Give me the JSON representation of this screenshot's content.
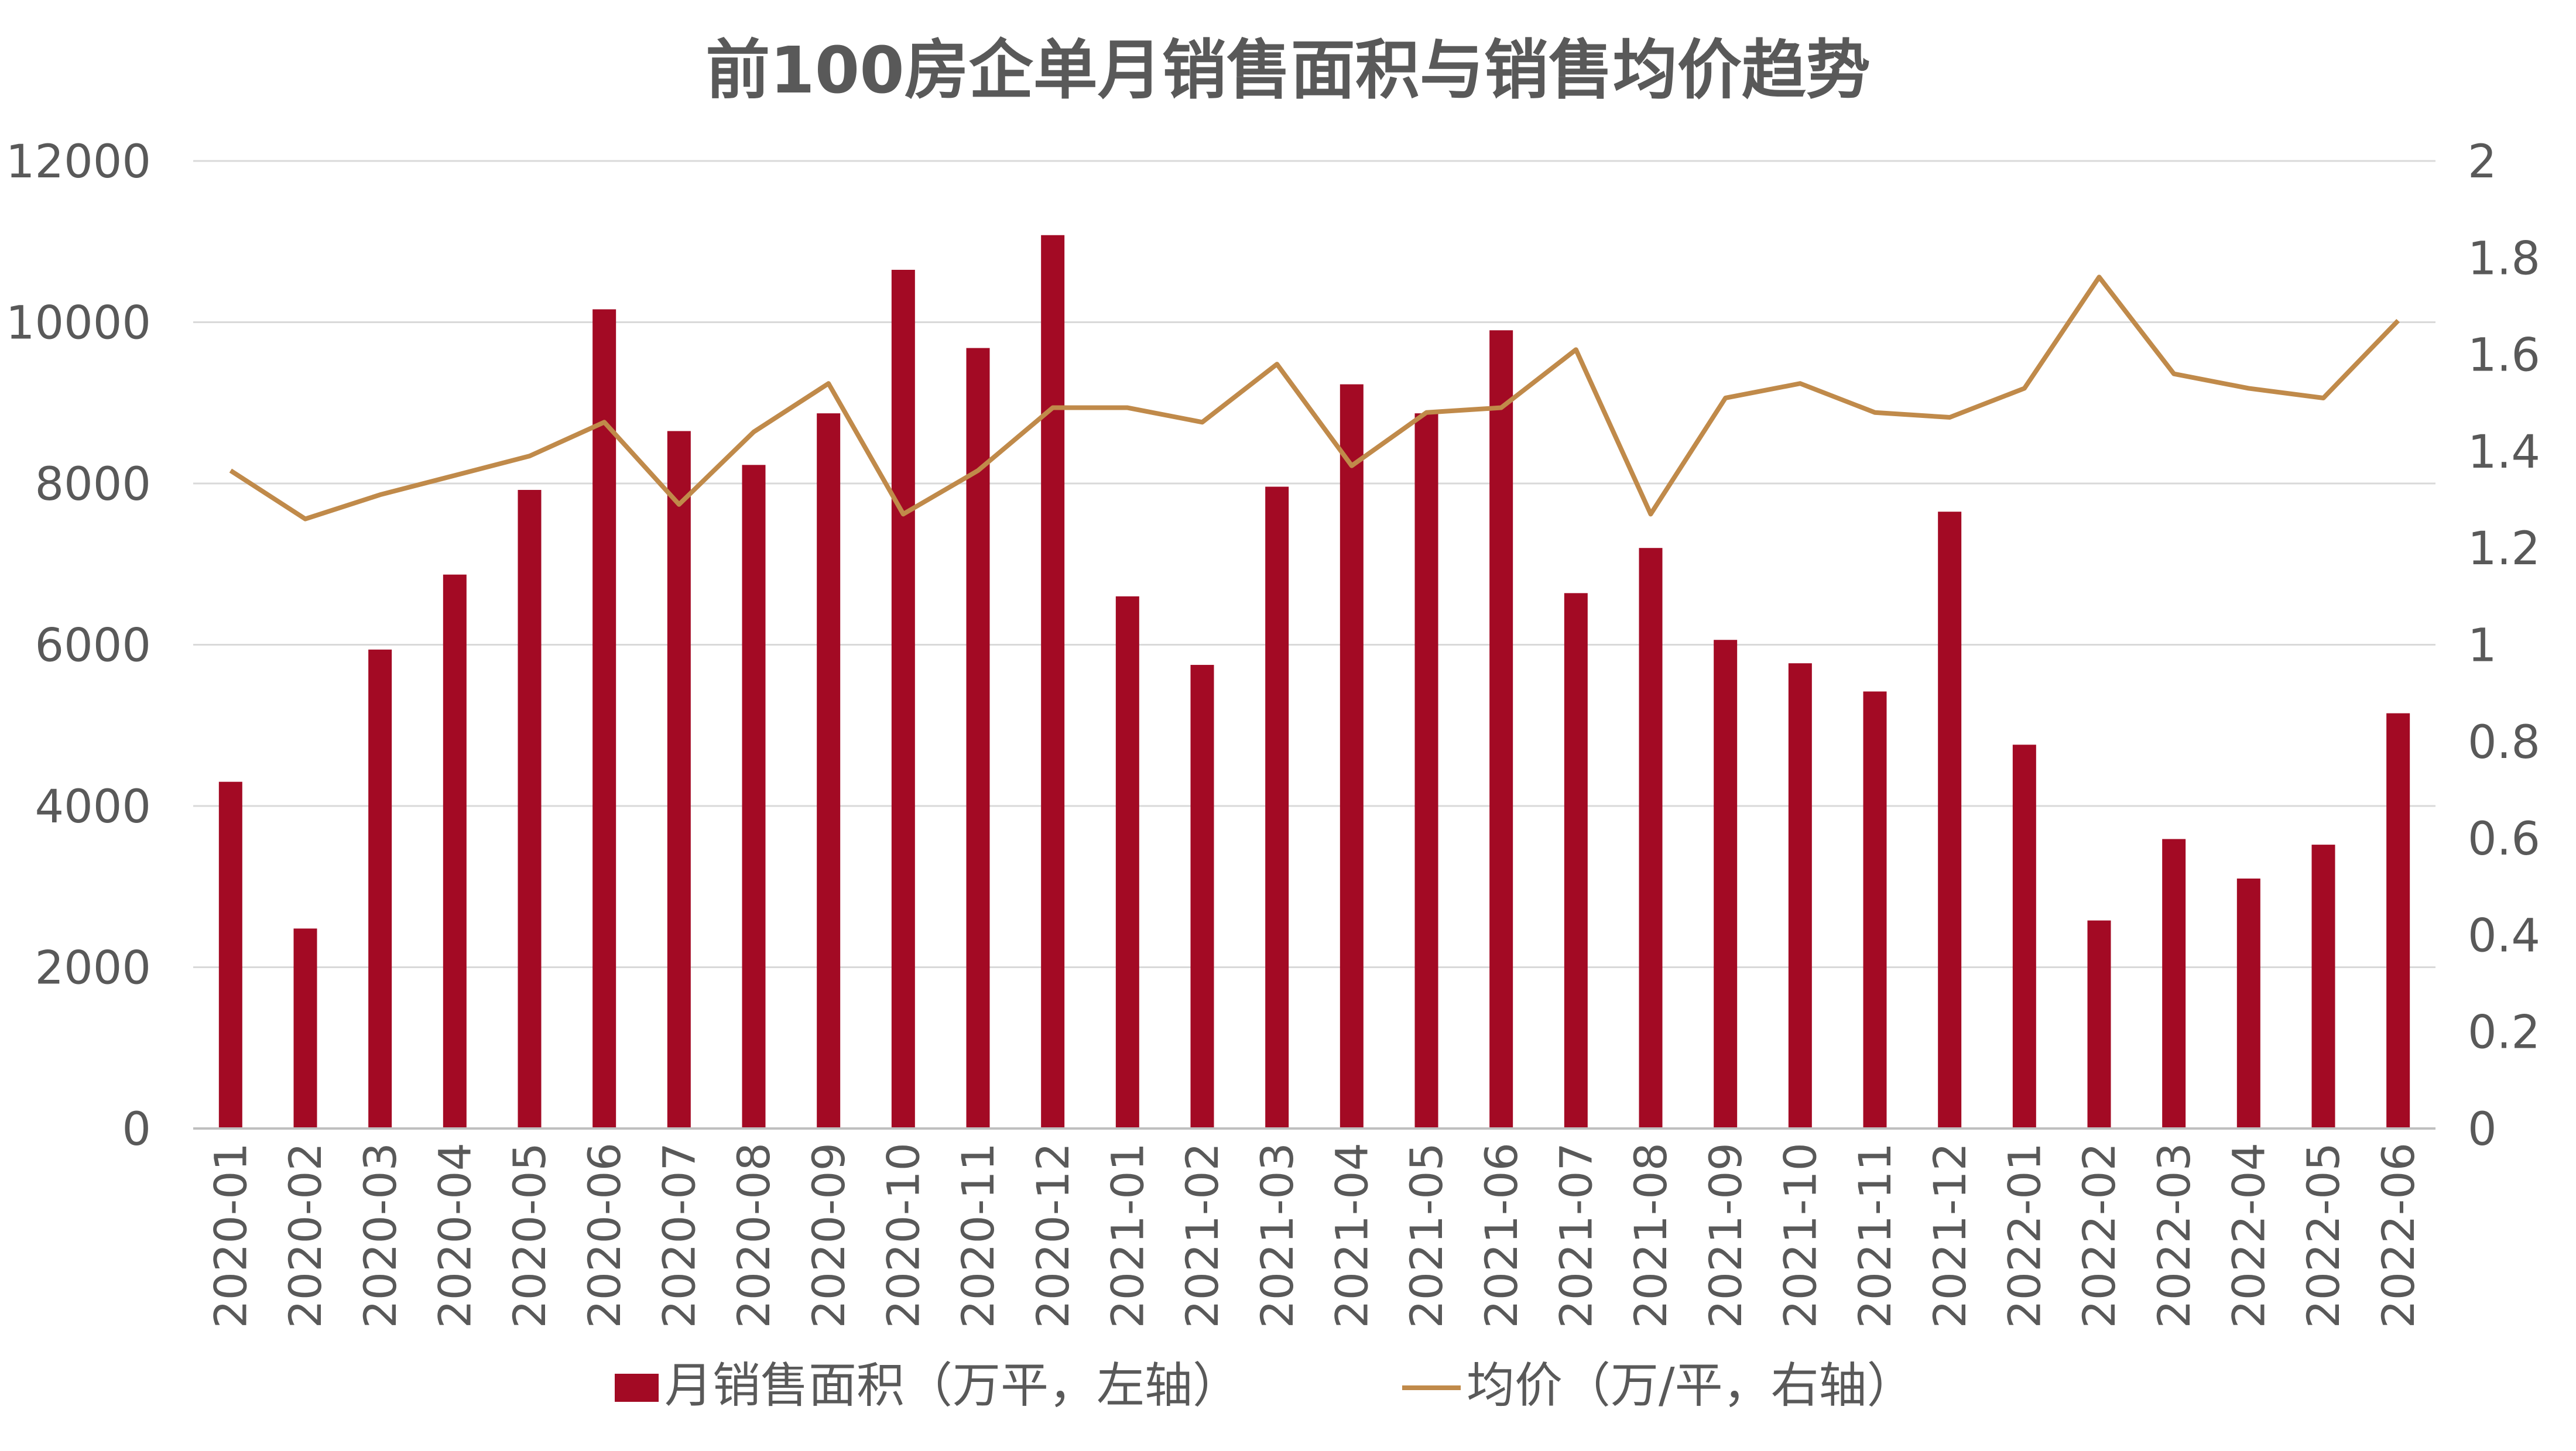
{
  "chart_data": {
    "type": "bar",
    "title": "前100房企单月销售面积与销售均价趋势",
    "categories": [
      "2020-01",
      "2020-02",
      "2020-03",
      "2020-04",
      "2020-05",
      "2020-06",
      "2020-07",
      "2020-08",
      "2020-09",
      "2020-10",
      "2020-11",
      "2020-12",
      "2021-01",
      "2021-02",
      "2021-03",
      "2021-04",
      "2021-05",
      "2021-06",
      "2021-07",
      "2021-08",
      "2021-09",
      "2021-10",
      "2021-11",
      "2021-12",
      "2022-01",
      "2022-02",
      "2022-03",
      "2022-04",
      "2022-05",
      "2022-06"
    ],
    "series": [
      {
        "name": "月销售面积（万平，左轴）",
        "type": "bar",
        "axis": "left",
        "color": "#A30A24",
        "values": [
          4300,
          2480,
          5940,
          6870,
          7920,
          10160,
          8650,
          8230,
          8870,
          10650,
          9680,
          11080,
          6600,
          5750,
          7960,
          9230,
          8870,
          9900,
          6640,
          7200,
          6060,
          5770,
          5420,
          7650,
          4760,
          2580,
          3590,
          3100,
          3520,
          5150
        ]
      },
      {
        "name": "均价（万/平，右轴）",
        "type": "line",
        "axis": "right",
        "color": "#C08A4A",
        "values": [
          1.36,
          1.26,
          1.31,
          1.35,
          1.39,
          1.46,
          1.29,
          1.44,
          1.54,
          1.27,
          1.36,
          1.49,
          1.49,
          1.46,
          1.58,
          1.37,
          1.48,
          1.49,
          1.61,
          1.27,
          1.51,
          1.54,
          1.48,
          1.47,
          1.53,
          1.76,
          1.56,
          1.53,
          1.51,
          1.67
        ]
      }
    ],
    "y_left": {
      "ylim": [
        0,
        12000
      ],
      "ticks": [
        "0",
        "2000",
        "4000",
        "6000",
        "8000",
        "10000",
        "12000"
      ]
    },
    "y_right": {
      "ylim": [
        0,
        2
      ],
      "ticks": [
        "0",
        "0.2",
        "0.4",
        "0.6",
        "0.8",
        "1",
        "1.2",
        "1.4",
        "1.6",
        "1.8",
        "2"
      ]
    },
    "xlabel": "",
    "ylabel": "",
    "grid": true,
    "legend_position": "bottom"
  }
}
